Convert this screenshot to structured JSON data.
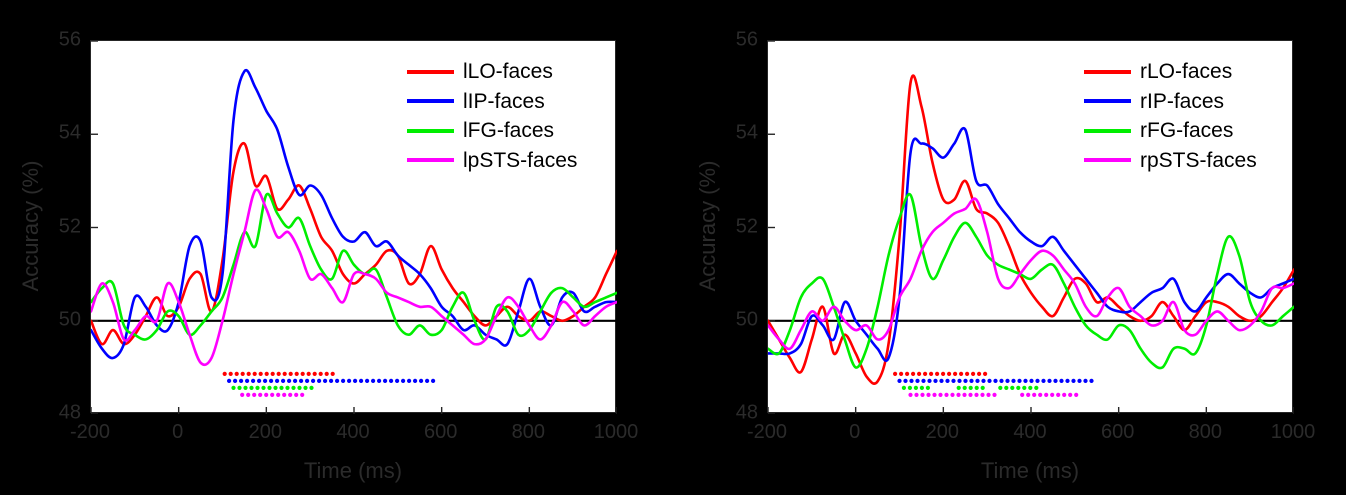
{
  "figure": {
    "background_color": "#000000",
    "plot_background_color": "#ffffff",
    "axis_text_color": "#2b2b2b",
    "baseline_color": "#000000"
  },
  "chart_data": [
    {
      "type": "line",
      "panel": "left",
      "xlabel": "Time (ms)",
      "ylabel": "Accuracy (%)",
      "xlim": [
        -200,
        1000
      ],
      "ylim": [
        48,
        56
      ],
      "xticks": [
        -200,
        0,
        200,
        400,
        600,
        800,
        1000
      ],
      "xtick_labels": [
        "-200",
        "0",
        "200",
        "400",
        "600",
        "800",
        "1000"
      ],
      "yticks": [
        48,
        50,
        52,
        54,
        56
      ],
      "ytick_labels": [
        "48",
        "50",
        "52",
        "54",
        "56"
      ],
      "baseline": 50,
      "grid": false,
      "legend_position": "top-right-inside",
      "x": [
        -200,
        -175,
        -150,
        -125,
        -100,
        -75,
        -50,
        -25,
        0,
        25,
        50,
        75,
        100,
        125,
        150,
        175,
        200,
        225,
        250,
        275,
        300,
        325,
        350,
        375,
        400,
        425,
        450,
        475,
        500,
        525,
        550,
        575,
        600,
        625,
        650,
        675,
        700,
        725,
        750,
        775,
        800,
        825,
        850,
        875,
        900,
        925,
        950,
        975,
        1000
      ],
      "series": [
        {
          "name": "lLO-faces",
          "color": "#ff0000",
          "values": [
            50.0,
            49.5,
            49.8,
            49.5,
            49.7,
            50.1,
            50.5,
            50.1,
            50.3,
            50.9,
            51.0,
            50.2,
            51.3,
            53.2,
            53.8,
            52.9,
            53.1,
            52.4,
            52.6,
            52.9,
            52.4,
            51.8,
            51.5,
            51.0,
            50.8,
            51.0,
            51.2,
            51.5,
            51.4,
            50.8,
            51.0,
            51.6,
            51.1,
            50.7,
            50.4,
            50.1,
            49.9,
            50.1,
            50.3,
            50.1,
            50.0,
            50.2,
            50.1,
            50.0,
            50.1,
            50.3,
            50.5,
            51.0,
            51.5
          ]
        },
        {
          "name": "lIP-faces",
          "color": "#0000ff",
          "values": [
            49.8,
            49.4,
            49.2,
            49.5,
            50.5,
            50.3,
            49.9,
            49.8,
            50.4,
            51.6,
            51.7,
            50.5,
            51.0,
            54.3,
            55.35,
            55.0,
            54.5,
            54.1,
            53.3,
            52.7,
            52.9,
            52.7,
            52.2,
            51.8,
            51.7,
            51.9,
            51.6,
            51.7,
            51.4,
            51.2,
            51.0,
            50.7,
            50.3,
            50.1,
            49.8,
            49.9,
            49.7,
            49.6,
            49.5,
            50.2,
            50.9,
            50.3,
            49.9,
            50.5,
            50.6,
            50.2,
            50.3,
            50.4,
            50.4
          ]
        },
        {
          "name": "lFG-faces",
          "color": "#00ee00",
          "values": [
            50.4,
            50.7,
            50.8,
            49.9,
            49.7,
            49.6,
            49.8,
            50.2,
            50.1,
            49.7,
            49.9,
            50.2,
            50.5,
            51.2,
            51.9,
            51.6,
            52.7,
            52.3,
            52.0,
            52.2,
            51.6,
            51.1,
            50.9,
            51.5,
            51.2,
            51.0,
            51.1,
            50.5,
            49.9,
            49.7,
            49.9,
            49.7,
            49.8,
            50.3,
            50.6,
            50.0,
            49.6,
            50.3,
            50.2,
            49.7,
            49.8,
            50.2,
            50.6,
            50.7,
            50.5,
            50.3,
            50.4,
            50.5,
            50.6
          ]
        },
        {
          "name": "lpSTS-faces",
          "color": "#ff00ff",
          "values": [
            50.2,
            50.8,
            50.4,
            49.6,
            49.8,
            50.1,
            50.0,
            50.8,
            50.4,
            49.7,
            49.1,
            49.2,
            50.0,
            51.0,
            51.9,
            52.8,
            52.4,
            51.8,
            51.9,
            51.5,
            50.9,
            51.0,
            50.7,
            50.4,
            51.0,
            51.0,
            50.9,
            50.6,
            50.5,
            50.4,
            50.3,
            50.3,
            50.1,
            49.9,
            49.7,
            49.5,
            49.6,
            50.1,
            50.5,
            50.3,
            49.9,
            49.6,
            49.9,
            50.4,
            50.2,
            49.9,
            50.1,
            50.3,
            50.4
          ]
        }
      ],
      "significance_markers": [
        {
          "series": "lLO-faces",
          "color": "#ff0000",
          "y": 48.86,
          "time_ranges_ms": [
            [
              105,
              365
            ]
          ]
        },
        {
          "series": "lIP-faces",
          "color": "#0000ff",
          "y": 48.71,
          "time_ranges_ms": [
            [
              115,
              585
            ]
          ]
        },
        {
          "series": "lFG-faces",
          "color": "#00ee00",
          "y": 48.56,
          "time_ranges_ms": [
            [
              125,
              310
            ]
          ]
        },
        {
          "series": "lpSTS-faces",
          "color": "#ff00ff",
          "y": 48.41,
          "time_ranges_ms": [
            [
              145,
              295
            ]
          ]
        }
      ]
    },
    {
      "type": "line",
      "panel": "right",
      "xlabel": "Time (ms)",
      "ylabel": "Accuracy (%)",
      "xlim": [
        -200,
        1000
      ],
      "ylim": [
        48,
        56
      ],
      "xticks": [
        -200,
        0,
        200,
        400,
        600,
        800,
        1000
      ],
      "xtick_labels": [
        "-200",
        "0",
        "200",
        "400",
        "600",
        "800",
        "1000"
      ],
      "yticks": [
        48,
        50,
        52,
        54,
        56
      ],
      "ytick_labels": [
        "48",
        "50",
        "52",
        "54",
        "56"
      ],
      "baseline": 50,
      "grid": false,
      "legend_position": "top-right-inside",
      "x": [
        -200,
        -175,
        -150,
        -125,
        -100,
        -75,
        -50,
        -25,
        0,
        25,
        50,
        75,
        100,
        125,
        150,
        175,
        200,
        225,
        250,
        275,
        300,
        325,
        350,
        375,
        400,
        425,
        450,
        475,
        500,
        525,
        550,
        575,
        600,
        625,
        650,
        675,
        700,
        725,
        750,
        775,
        800,
        825,
        850,
        875,
        900,
        925,
        950,
        975,
        1000
      ],
      "series": [
        {
          "name": "rLO-faces",
          "color": "#ff0000",
          "values": [
            50.0,
            49.6,
            49.2,
            48.9,
            49.6,
            50.3,
            49.3,
            49.7,
            49.3,
            48.8,
            48.7,
            49.5,
            51.8,
            55.1,
            54.6,
            53.4,
            52.6,
            52.6,
            53.0,
            52.4,
            52.3,
            52.1,
            51.6,
            51.0,
            50.6,
            50.3,
            50.1,
            50.5,
            50.9,
            50.8,
            50.4,
            50.5,
            50.3,
            50.1,
            50.0,
            50.1,
            50.4,
            50.1,
            49.8,
            50.1,
            50.4,
            50.4,
            50.3,
            50.1,
            50.0,
            50.1,
            50.4,
            50.7,
            51.1
          ]
        },
        {
          "name": "rIP-faces",
          "color": "#0000ff",
          "values": [
            49.3,
            49.3,
            49.3,
            49.5,
            50.1,
            49.9,
            49.6,
            50.4,
            50.0,
            49.7,
            49.4,
            49.2,
            50.5,
            53.6,
            53.8,
            53.7,
            53.5,
            53.8,
            54.1,
            53.0,
            52.9,
            52.5,
            52.2,
            51.9,
            51.7,
            51.6,
            51.8,
            51.5,
            51.2,
            50.9,
            50.6,
            50.3,
            50.2,
            50.2,
            50.4,
            50.6,
            50.7,
            50.9,
            50.4,
            50.2,
            50.5,
            50.8,
            51.0,
            50.8,
            50.6,
            50.5,
            50.7,
            50.8,
            50.9
          ]
        },
        {
          "name": "rFG-faces",
          "color": "#00ee00",
          "values": [
            49.4,
            49.3,
            49.8,
            50.5,
            50.8,
            50.9,
            50.3,
            49.6,
            49.0,
            49.4,
            50.3,
            51.4,
            52.2,
            52.7,
            51.6,
            50.9,
            51.3,
            51.8,
            52.1,
            51.8,
            51.4,
            51.2,
            51.1,
            51.0,
            50.9,
            51.1,
            51.2,
            50.8,
            50.3,
            49.9,
            49.7,
            49.6,
            49.9,
            49.8,
            49.4,
            49.1,
            49.0,
            49.4,
            49.4,
            49.3,
            49.9,
            51.0,
            51.8,
            51.4,
            50.4,
            50.0,
            49.9,
            50.1,
            50.3
          ]
        },
        {
          "name": "rpSTS-faces",
          "color": "#ff00ff",
          "values": [
            49.9,
            49.6,
            49.4,
            49.8,
            50.2,
            50.0,
            50.3,
            50.0,
            49.8,
            49.9,
            49.6,
            49.8,
            50.5,
            50.9,
            51.5,
            51.9,
            52.1,
            52.3,
            52.4,
            52.6,
            51.9,
            50.9,
            50.7,
            51.0,
            51.3,
            51.5,
            51.4,
            51.1,
            50.8,
            50.3,
            50.1,
            50.5,
            50.7,
            50.3,
            50.1,
            49.9,
            50.0,
            50.4,
            49.8,
            49.7,
            50.0,
            50.2,
            50.0,
            49.8,
            49.9,
            50.2,
            50.7,
            50.7,
            50.8
          ]
        }
      ],
      "significance_markers": [
        {
          "series": "rLO-faces",
          "color": "#ff0000",
          "y": 48.86,
          "time_ranges_ms": [
            [
              90,
              305
            ]
          ]
        },
        {
          "series": "rIP-faces",
          "color": "#0000ff",
          "y": 48.71,
          "time_ranges_ms": [
            [
              100,
              540
            ]
          ]
        },
        {
          "series": "rFG-faces",
          "color": "#00ee00",
          "y": 48.56,
          "time_ranges_ms": [
            [
              110,
              175
            ],
            [
              235,
              295
            ],
            [
              330,
              420
            ]
          ]
        },
        {
          "series": "rpSTS-faces",
          "color": "#ff00ff",
          "y": 48.41,
          "time_ranges_ms": [
            [
              125,
              325
            ],
            [
              380,
              505
            ]
          ]
        }
      ]
    }
  ]
}
